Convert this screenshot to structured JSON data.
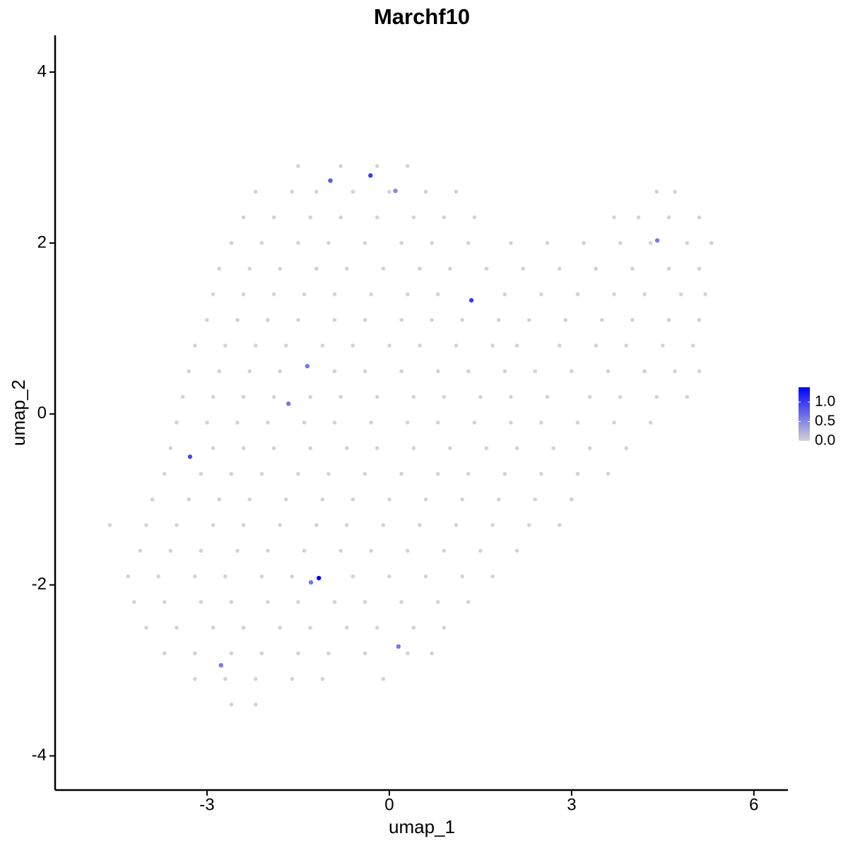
{
  "chart_data": {
    "type": "scatter",
    "title": "Marchf10",
    "x_label": "umap_1",
    "y_label": "umap_2",
    "xlim": [
      -5.5,
      6.56
    ],
    "ylim": [
      -4.4,
      4.43
    ],
    "xticks": [
      -3,
      0,
      3,
      6
    ],
    "yticks": [
      -4,
      -2,
      0,
      2,
      4
    ],
    "color_low": "#d3d3d3",
    "color_high": "#0000ff",
    "colorbar_lim": [
      0,
      1.38
    ],
    "colorbar_ticks": [
      {
        "value": 0,
        "label": "0.0"
      },
      {
        "value": 0.5,
        "label": "0.5"
      },
      {
        "value": 1,
        "label": "1.0"
      }
    ],
    "x": [
      -1.5,
      -0.8,
      -0.2,
      0.3,
      -2.2,
      -1.6,
      -1.2,
      -0.6,
      0.0,
      0.6,
      1.1,
      4.4,
      4.7,
      -2.4,
      -1.9,
      -1.3,
      -0.8,
      -0.2,
      0.4,
      0.9,
      1.4,
      3.7,
      4.1,
      4.6,
      5.1,
      -2.6,
      -2.1,
      -1.5,
      -1.0,
      -0.4,
      0.2,
      0.7,
      1.3,
      2.0,
      2.6,
      3.2,
      3.8,
      4.3,
      4.9,
      5.3,
      -2.8,
      -2.3,
      -1.8,
      -1.2,
      -0.7,
      -0.1,
      0.5,
      1.0,
      1.6,
      2.2,
      2.8,
      3.4,
      4.0,
      4.6,
      5.1,
      -2.9,
      -2.4,
      -1.9,
      -1.4,
      -0.9,
      -0.3,
      0.3,
      0.8,
      1.9,
      2.5,
      3.1,
      3.7,
      4.2,
      4.8,
      5.2,
      -3.0,
      -2.5,
      -2.0,
      -1.5,
      -0.9,
      -0.4,
      0.2,
      0.7,
      1.2,
      1.8,
      2.3,
      2.9,
      3.5,
      4.0,
      4.6,
      5.1,
      -3.2,
      -2.7,
      -2.2,
      -1.7,
      -1.1,
      -0.6,
      0.0,
      0.5,
      1.1,
      1.7,
      2.1,
      2.8,
      3.4,
      3.9,
      4.5,
      5.0,
      -3.3,
      -2.8,
      -2.3,
      -1.8,
      -0.9,
      -0.4,
      0.2,
      0.8,
      1.3,
      1.9,
      2.4,
      3.0,
      3.6,
      4.2,
      4.7,
      5.1,
      -3.4,
      -2.9,
      -2.4,
      -1.9,
      -1.3,
      -0.8,
      -0.2,
      0.4,
      0.9,
      1.5,
      2.0,
      2.6,
      3.3,
      3.8,
      4.4,
      4.9,
      -3.5,
      -3.0,
      -2.5,
      -2.0,
      -1.4,
      -0.9,
      -0.3,
      0.3,
      0.8,
      1.4,
      2.0,
      2.5,
      3.1,
      3.7,
      4.3,
      -3.6,
      -2.9,
      -2.4,
      -1.9,
      -1.3,
      -0.7,
      -0.2,
      0.4,
      1.0,
      1.6,
      2.1,
      2.7,
      3.3,
      3.9,
      -3.7,
      -3.1,
      -2.6,
      -2.1,
      -1.5,
      -1.0,
      -0.4,
      0.2,
      0.8,
      1.3,
      1.9,
      2.5,
      3.1,
      3.6,
      -3.9,
      -3.3,
      -2.8,
      -2.3,
      -1.7,
      -1.1,
      -0.6,
      0.0,
      0.6,
      1.2,
      1.8,
      2.4,
      3.0,
      -4.6,
      -4.0,
      -3.5,
      -2.9,
      -2.4,
      -1.8,
      -1.2,
      -0.7,
      -0.1,
      0.5,
      1.1,
      1.7,
      2.3,
      2.8,
      -4.1,
      -3.6,
      -3.1,
      -2.5,
      -2.0,
      -1.4,
      -0.8,
      -0.3,
      0.3,
      0.9,
      1.5,
      2.1,
      -4.3,
      -3.8,
      -3.2,
      -2.7,
      -2.1,
      -1.6,
      -0.6,
      0.0,
      0.6,
      1.2,
      1.7,
      -4.2,
      -3.7,
      -3.1,
      -2.6,
      -2.0,
      -1.5,
      -0.9,
      -0.4,
      0.2,
      0.8,
      1.3,
      -4.0,
      -3.5,
      -2.9,
      -2.4,
      -1.8,
      -1.3,
      -0.7,
      -0.2,
      0.4,
      0.9,
      -3.7,
      -3.2,
      -2.6,
      -2.1,
      -1.5,
      -1.0,
      -0.4,
      0.3,
      0.7,
      -3.2,
      -2.7,
      -2.2,
      -1.6,
      -1.1,
      -0.1,
      -2.6,
      -2.2,
      -0.97,
      -0.31,
      0.1,
      1.35,
      4.41,
      -1.35,
      -1.66,
      -3.28,
      -1.16,
      -1.29,
      0.15,
      -2.77
    ],
    "y": [
      2.9,
      2.9,
      2.9,
      2.9,
      2.6,
      2.6,
      2.6,
      2.6,
      2.6,
      2.6,
      2.6,
      2.6,
      2.6,
      2.3,
      2.3,
      2.3,
      2.3,
      2.3,
      2.3,
      2.3,
      2.3,
      2.3,
      2.3,
      2.3,
      2.3,
      2.0,
      2.0,
      2.0,
      2.0,
      2.0,
      2.0,
      2.0,
      2.0,
      2.0,
      2.0,
      2.0,
      2.0,
      2.0,
      2.0,
      2.0,
      1.7,
      1.7,
      1.7,
      1.7,
      1.7,
      1.7,
      1.7,
      1.7,
      1.7,
      1.7,
      1.7,
      1.7,
      1.7,
      1.7,
      1.7,
      1.4,
      1.4,
      1.4,
      1.4,
      1.4,
      1.4,
      1.4,
      1.4,
      1.4,
      1.4,
      1.4,
      1.4,
      1.4,
      1.4,
      1.4,
      1.1,
      1.1,
      1.1,
      1.1,
      1.1,
      1.1,
      1.1,
      1.1,
      1.1,
      1.1,
      1.1,
      1.1,
      1.1,
      1.1,
      1.1,
      1.1,
      0.8,
      0.8,
      0.8,
      0.8,
      0.8,
      0.8,
      0.8,
      0.8,
      0.8,
      0.8,
      0.8,
      0.8,
      0.8,
      0.8,
      0.8,
      0.8,
      0.5,
      0.5,
      0.5,
      0.5,
      0.5,
      0.5,
      0.5,
      0.5,
      0.5,
      0.5,
      0.5,
      0.5,
      0.5,
      0.5,
      0.5,
      0.5,
      0.2,
      0.2,
      0.2,
      0.2,
      0.2,
      0.2,
      0.2,
      0.2,
      0.2,
      0.2,
      0.2,
      0.2,
      0.2,
      0.2,
      0.2,
      0.2,
      -0.1,
      -0.1,
      -0.1,
      -0.1,
      -0.1,
      -0.1,
      -0.1,
      -0.1,
      -0.1,
      -0.1,
      -0.1,
      -0.1,
      -0.1,
      -0.1,
      -0.1,
      -0.4,
      -0.4,
      -0.4,
      -0.4,
      -0.4,
      -0.4,
      -0.4,
      -0.4,
      -0.4,
      -0.4,
      -0.4,
      -0.4,
      -0.4,
      -0.4,
      -0.7,
      -0.7,
      -0.7,
      -0.7,
      -0.7,
      -0.7,
      -0.7,
      -0.7,
      -0.7,
      -0.7,
      -0.7,
      -0.7,
      -0.7,
      -0.7,
      -1.0,
      -1.0,
      -1.0,
      -1.0,
      -1.0,
      -1.0,
      -1.0,
      -1.0,
      -1.0,
      -1.0,
      -1.0,
      -1.0,
      -1.0,
      -1.3,
      -1.3,
      -1.3,
      -1.3,
      -1.3,
      -1.3,
      -1.3,
      -1.3,
      -1.3,
      -1.3,
      -1.3,
      -1.3,
      -1.3,
      -1.3,
      -1.6,
      -1.6,
      -1.6,
      -1.6,
      -1.6,
      -1.6,
      -1.6,
      -1.6,
      -1.6,
      -1.6,
      -1.6,
      -1.6,
      -1.9,
      -1.9,
      -1.9,
      -1.9,
      -1.9,
      -1.9,
      -1.9,
      -1.9,
      -1.9,
      -1.9,
      -1.9,
      -2.2,
      -2.2,
      -2.2,
      -2.2,
      -2.2,
      -2.2,
      -2.2,
      -2.2,
      -2.2,
      -2.2,
      -2.2,
      -2.5,
      -2.5,
      -2.5,
      -2.5,
      -2.5,
      -2.5,
      -2.5,
      -2.5,
      -2.5,
      -2.5,
      -2.8,
      -2.8,
      -2.8,
      -2.8,
      -2.8,
      -2.8,
      -2.8,
      -2.8,
      -2.8,
      -3.1,
      -3.1,
      -3.1,
      -3.1,
      -3.1,
      -3.1,
      -3.4,
      -3.4,
      2.73,
      2.79,
      2.61,
      1.33,
      2.03,
      0.56,
      0.12,
      -0.5,
      -1.92,
      -1.97,
      -2.72,
      -2.94
    ],
    "values": [
      0,
      0,
      0,
      0,
      0,
      0,
      0,
      0,
      0,
      0,
      0,
      0,
      0,
      0,
      0,
      0,
      0,
      0,
      0,
      0,
      0,
      0,
      0,
      0,
      0,
      0,
      0,
      0,
      0,
      0,
      0,
      0,
      0,
      0,
      0,
      0,
      0,
      0,
      0,
      0,
      0,
      0,
      0,
      0,
      0,
      0,
      0,
      0,
      0,
      0,
      0,
      0,
      0,
      0,
      0,
      0,
      0,
      0,
      0,
      0,
      0,
      0,
      0,
      0,
      0,
      0,
      0,
      0,
      0,
      0,
      0,
      0,
      0,
      0,
      0,
      0,
      0,
      0,
      0,
      0,
      0,
      0,
      0,
      0,
      0,
      0,
      0,
      0,
      0,
      0,
      0,
      0,
      0,
      0,
      0,
      0,
      0,
      0,
      0,
      0,
      0,
      0,
      0,
      0,
      0,
      0,
      0,
      0,
      0,
      0,
      0,
      0,
      0,
      0,
      0,
      0,
      0,
      0,
      0,
      0,
      0,
      0,
      0,
      0,
      0,
      0,
      0,
      0,
      0,
      0,
      0,
      0,
      0,
      0,
      0,
      0,
      0,
      0,
      0,
      0,
      0,
      0,
      0,
      0,
      0,
      0,
      0,
      0,
      0,
      0,
      0,
      0,
      0,
      0,
      0,
      0,
      0,
      0,
      0,
      0,
      0,
      0,
      0,
      0,
      0,
      0,
      0,
      0,
      0,
      0,
      0,
      0,
      0,
      0,
      0,
      0,
      0,
      0,
      0,
      0,
      0,
      0,
      0,
      0,
      0,
      0,
      0,
      0,
      0,
      0,
      0,
      0,
      0,
      0,
      0,
      0,
      0,
      0,
      0,
      0,
      0,
      0,
      0,
      0,
      0,
      0,
      0,
      0,
      0,
      0,
      0,
      0,
      0,
      0,
      0,
      0,
      0,
      0,
      0,
      0,
      0,
      0,
      0,
      0,
      0,
      0,
      0,
      0,
      0,
      0,
      0,
      0,
      0,
      0,
      0,
      0,
      0,
      0,
      0,
      0,
      0,
      0,
      0,
      0,
      0,
      0,
      0,
      0,
      0,
      0,
      0,
      0,
      0,
      0,
      0,
      0,
      0,
      0,
      0,
      0,
      0,
      0,
      0,
      0,
      0,
      0.8,
      1.0,
      0.5,
      1.0,
      0.6,
      0.6,
      0.6,
      0.9,
      1.38,
      0.6,
      0.6,
      0.6
    ]
  }
}
